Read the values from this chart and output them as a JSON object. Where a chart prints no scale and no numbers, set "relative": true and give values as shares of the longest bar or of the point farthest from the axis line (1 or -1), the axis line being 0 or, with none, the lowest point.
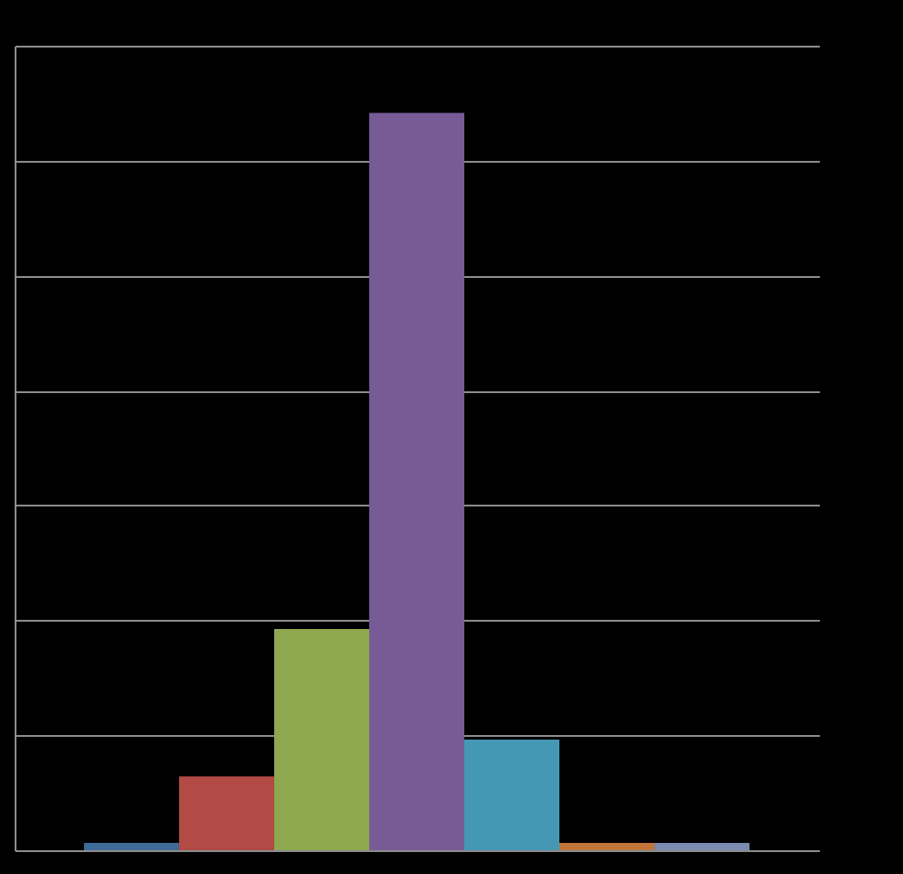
{
  "chart_data": {
    "type": "bar",
    "relative": true,
    "grid": "y",
    "categories": [
      null,
      null,
      null,
      null,
      null,
      null,
      null
    ],
    "values": [
      0.01,
      0.1,
      0.3,
      1,
      0.15,
      0.01,
      0.01
    ],
    "colors": [
      "#3f6b9a",
      "#b24a46",
      "#8da84f",
      "#775b97",
      "#4598b4",
      "#c2763a",
      "#7b8ab0"
    ]
  }
}
